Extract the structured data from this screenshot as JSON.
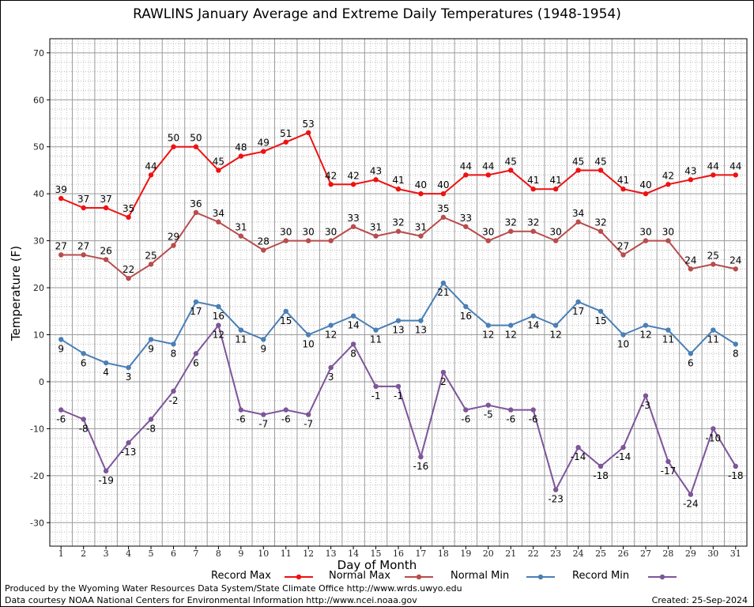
{
  "chart_data": {
    "type": "line",
    "title": "RAWLINS January Average and Extreme Daily Temperatures (1948-1954)",
    "xlabel": "Day of Month",
    "ylabel": "Temperature (F)",
    "x": [
      1,
      2,
      3,
      4,
      5,
      6,
      7,
      8,
      9,
      10,
      11,
      12,
      13,
      14,
      15,
      16,
      17,
      18,
      19,
      20,
      21,
      22,
      23,
      24,
      25,
      26,
      27,
      28,
      29,
      30,
      31
    ],
    "xlim": [
      0.5,
      31.5
    ],
    "ylim": [
      -35,
      73
    ],
    "yticks": [
      -30,
      -20,
      -10,
      0,
      10,
      20,
      30,
      40,
      50,
      60,
      70
    ],
    "grid": true,
    "legend_position": "bottom",
    "series": [
      {
        "name": "Record Max",
        "color": "#ee1111",
        "values": [
          39,
          37,
          37,
          35,
          44,
          50,
          50,
          45,
          48,
          49,
          51,
          53,
          42,
          42,
          43,
          41,
          40,
          40,
          44,
          44,
          45,
          41,
          41,
          45,
          45,
          41,
          40,
          42,
          43,
          44,
          44
        ]
      },
      {
        "name": "Normal Max",
        "color": "#b84c4c",
        "values": [
          27,
          27,
          26,
          22,
          25,
          29,
          36,
          34,
          31,
          28,
          30,
          30,
          30,
          33,
          31,
          32,
          31,
          35,
          33,
          30,
          32,
          32,
          30,
          34,
          32,
          27,
          30,
          30,
          24,
          25,
          24
        ]
      },
      {
        "name": "Normal Min",
        "color": "#4a7fb5",
        "values": [
          9,
          6,
          4,
          3,
          9,
          8,
          17,
          16,
          11,
          9,
          15,
          10,
          12,
          14,
          11,
          13,
          13,
          21,
          16,
          12,
          12,
          14,
          12,
          17,
          15,
          10,
          12,
          11,
          6,
          11,
          8
        ]
      },
      {
        "name": "Record Min",
        "color": "#7d5599",
        "values": [
          -6,
          -8,
          -19,
          -13,
          -8,
          -2,
          6,
          12,
          -6,
          -7,
          -6,
          -7,
          3,
          8,
          -1,
          -1,
          -16,
          2,
          -6,
          -5,
          -6,
          -6,
          -23,
          -14,
          -18,
          -14,
          -3,
          -17,
          -24,
          -10,
          -18
        ]
      }
    ]
  },
  "footer": {
    "credit_line1": "Produced by the Wyoming Water Resources Data System/State Climate Office http://www.wrds.uwyo.edu",
    "credit_line2": "Data courtesy NOAA National Centers for Environmental Information http://www.ncei.noaa.gov",
    "created": "Created:  25-Sep-2024"
  }
}
